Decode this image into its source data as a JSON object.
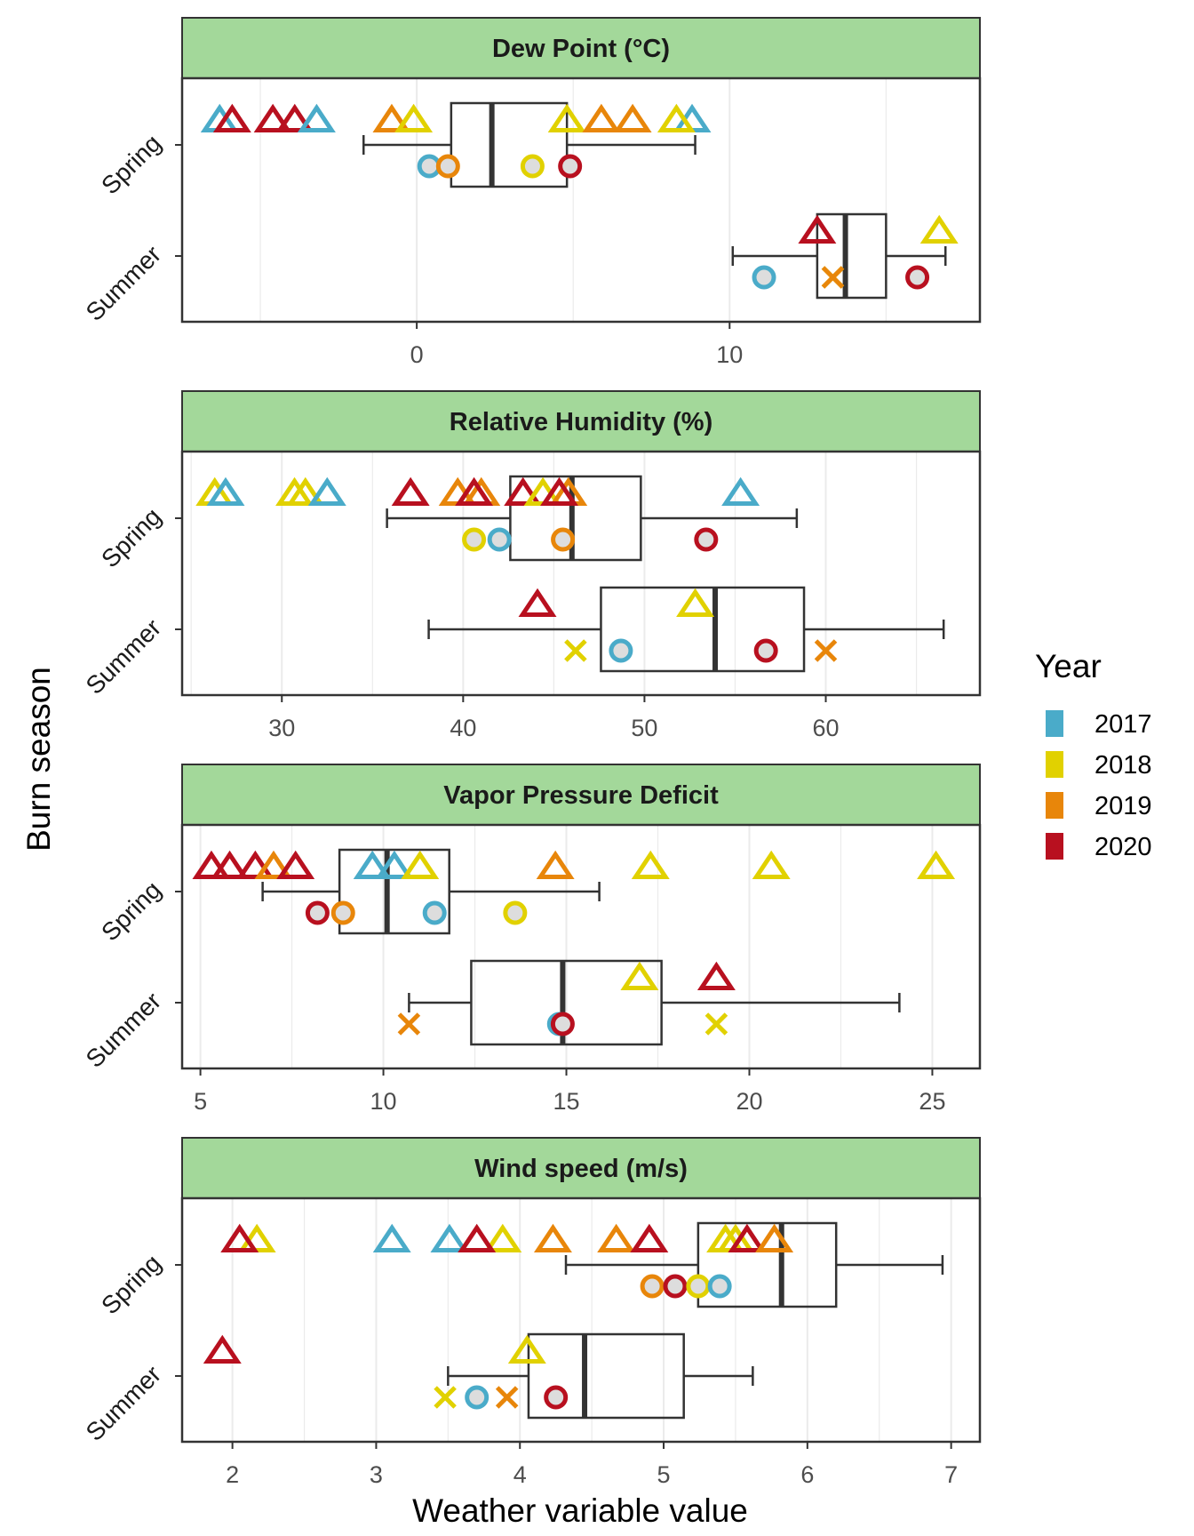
{
  "chart_data": {
    "type": "boxplot",
    "ylabel": "Burn season",
    "xlabel": "Weather variable value",
    "categories": [
      "Spring",
      "Summer"
    ],
    "legend": {
      "title": "Year",
      "placement": "right",
      "entries": [
        {
          "label": "2017",
          "color": "#4AABC9"
        },
        {
          "label": "2018",
          "color": "#E1D100"
        },
        {
          "label": "2019",
          "color": "#E8860A"
        },
        {
          "label": "2020",
          "color": "#B8101F"
        }
      ]
    },
    "panels": [
      {
        "title": "Dew Point (°C)",
        "xlim": [
          -7.5,
          18
        ],
        "xticks": [
          0,
          10
        ],
        "grid": true,
        "boxes": {
          "Spring": {
            "whisker_low": -1.7,
            "q1": 1.1,
            "median": 2.4,
            "q3": 4.8,
            "whisker_high": 8.9
          },
          "Summer": {
            "whisker_low": 10.1,
            "q1": 12.8,
            "median": 13.7,
            "q3": 15.0,
            "whisker_high": 16.9
          }
        },
        "points": [
          {
            "season": "Spring",
            "shape": "triangle",
            "year": "2017",
            "x": -6.3
          },
          {
            "season": "Spring",
            "shape": "triangle",
            "year": "2020",
            "x": -5.9
          },
          {
            "season": "Spring",
            "shape": "triangle",
            "year": "2020",
            "x": -4.6
          },
          {
            "season": "Spring",
            "shape": "triangle",
            "year": "2020",
            "x": -3.9
          },
          {
            "season": "Spring",
            "shape": "triangle",
            "year": "2017",
            "x": -3.2
          },
          {
            "season": "Spring",
            "shape": "triangle",
            "year": "2019",
            "x": -0.8
          },
          {
            "season": "Spring",
            "shape": "triangle",
            "year": "2018",
            "x": -0.1
          },
          {
            "season": "Spring",
            "shape": "triangle",
            "year": "2018",
            "x": 4.8
          },
          {
            "season": "Spring",
            "shape": "triangle",
            "year": "2019",
            "x": 5.9
          },
          {
            "season": "Spring",
            "shape": "triangle",
            "year": "2019",
            "x": 6.9
          },
          {
            "season": "Spring",
            "shape": "triangle",
            "year": "2017",
            "x": 8.8
          },
          {
            "season": "Spring",
            "shape": "triangle",
            "year": "2018",
            "x": 8.3
          },
          {
            "season": "Spring",
            "shape": "circle",
            "year": "2017",
            "x": 0.4
          },
          {
            "season": "Spring",
            "shape": "circle",
            "year": "2019",
            "x": 1.0
          },
          {
            "season": "Spring",
            "shape": "circle",
            "year": "2018",
            "x": 3.7
          },
          {
            "season": "Spring",
            "shape": "circle",
            "year": "2020",
            "x": 4.9
          },
          {
            "season": "Summer",
            "shape": "triangle",
            "year": "2020",
            "x": 12.8
          },
          {
            "season": "Summer",
            "shape": "triangle",
            "year": "2018",
            "x": 16.7
          },
          {
            "season": "Summer",
            "shape": "circle",
            "year": "2017",
            "x": 11.1
          },
          {
            "season": "Summer",
            "shape": "cross",
            "year": "2018",
            "x": 13.3
          },
          {
            "season": "Summer",
            "shape": "cross",
            "year": "2019",
            "x": 13.3
          },
          {
            "season": "Summer",
            "shape": "circle",
            "year": "2020",
            "x": 16.0
          }
        ]
      },
      {
        "title": "Relative Humidity (%)",
        "xlim": [
          24.5,
          68.5
        ],
        "xticks": [
          30,
          40,
          50,
          60
        ],
        "grid": true,
        "boxes": {
          "Spring": {
            "whisker_low": 35.8,
            "q1": 42.6,
            "median": 46.0,
            "q3": 49.8,
            "whisker_high": 58.4
          },
          "Summer": {
            "whisker_low": 38.1,
            "q1": 47.6,
            "median": 53.9,
            "q3": 58.8,
            "whisker_high": 66.5
          }
        },
        "points": [
          {
            "season": "Spring",
            "shape": "triangle",
            "year": "2018",
            "x": 26.3
          },
          {
            "season": "Spring",
            "shape": "triangle",
            "year": "2017",
            "x": 26.9
          },
          {
            "season": "Spring",
            "shape": "triangle",
            "year": "2018",
            "x": 30.7
          },
          {
            "season": "Spring",
            "shape": "triangle",
            "year": "2018",
            "x": 31.3
          },
          {
            "season": "Spring",
            "shape": "triangle",
            "year": "2017",
            "x": 32.5
          },
          {
            "season": "Spring",
            "shape": "triangle",
            "year": "2020",
            "x": 37.1
          },
          {
            "season": "Spring",
            "shape": "triangle",
            "year": "2019",
            "x": 39.7
          },
          {
            "season": "Spring",
            "shape": "triangle",
            "year": "2019",
            "x": 41.0
          },
          {
            "season": "Spring",
            "shape": "triangle",
            "year": "2020",
            "x": 40.6
          },
          {
            "season": "Spring",
            "shape": "triangle",
            "year": "2020",
            "x": 43.3
          },
          {
            "season": "Spring",
            "shape": "triangle",
            "year": "2018",
            "x": 44.4
          },
          {
            "season": "Spring",
            "shape": "triangle",
            "year": "2019",
            "x": 45.8
          },
          {
            "season": "Spring",
            "shape": "triangle",
            "year": "2020",
            "x": 45.3
          },
          {
            "season": "Spring",
            "shape": "triangle",
            "year": "2017",
            "x": 55.3
          },
          {
            "season": "Spring",
            "shape": "circle",
            "year": "2018",
            "x": 40.6
          },
          {
            "season": "Spring",
            "shape": "circle",
            "year": "2017",
            "x": 42.0
          },
          {
            "season": "Spring",
            "shape": "circle",
            "year": "2019",
            "x": 45.5
          },
          {
            "season": "Spring",
            "shape": "circle",
            "year": "2020",
            "x": 53.4
          },
          {
            "season": "Summer",
            "shape": "triangle",
            "year": "2020",
            "x": 44.1
          },
          {
            "season": "Summer",
            "shape": "triangle",
            "year": "2018",
            "x": 52.8
          },
          {
            "season": "Summer",
            "shape": "cross",
            "year": "2018",
            "x": 46.2
          },
          {
            "season": "Summer",
            "shape": "circle",
            "year": "2017",
            "x": 48.7
          },
          {
            "season": "Summer",
            "shape": "circle",
            "year": "2020",
            "x": 56.7
          },
          {
            "season": "Summer",
            "shape": "cross",
            "year": "2019",
            "x": 60.0
          }
        ]
      },
      {
        "title": "Vapor Pressure Deficit",
        "xlim": [
          4.5,
          26.3
        ],
        "xticks": [
          5,
          10,
          15,
          20,
          25
        ],
        "grid": true,
        "boxes": {
          "Spring": {
            "whisker_low": 6.7,
            "q1": 8.8,
            "median": 10.1,
            "q3": 11.8,
            "whisker_high": 15.9
          },
          "Summer": {
            "whisker_low": 10.7,
            "q1": 12.4,
            "median": 14.9,
            "q3": 17.6,
            "whisker_high": 24.1
          }
        },
        "points": [
          {
            "season": "Spring",
            "shape": "triangle",
            "year": "2020",
            "x": 5.3
          },
          {
            "season": "Spring",
            "shape": "triangle",
            "year": "2020",
            "x": 5.8
          },
          {
            "season": "Spring",
            "shape": "triangle",
            "year": "2020",
            "x": 6.5
          },
          {
            "season": "Spring",
            "shape": "triangle",
            "year": "2019",
            "x": 7.0
          },
          {
            "season": "Spring",
            "shape": "triangle",
            "year": "2020",
            "x": 7.6
          },
          {
            "season": "Spring",
            "shape": "triangle",
            "year": "2017",
            "x": 9.7
          },
          {
            "season": "Spring",
            "shape": "triangle",
            "year": "2017",
            "x": 10.3
          },
          {
            "season": "Spring",
            "shape": "triangle",
            "year": "2018",
            "x": 11.0
          },
          {
            "season": "Spring",
            "shape": "triangle",
            "year": "2019",
            "x": 14.7
          },
          {
            "season": "Spring",
            "shape": "triangle",
            "year": "2018",
            "x": 17.3
          },
          {
            "season": "Spring",
            "shape": "triangle",
            "year": "2018",
            "x": 20.6
          },
          {
            "season": "Spring",
            "shape": "triangle",
            "year": "2018",
            "x": 25.1
          },
          {
            "season": "Spring",
            "shape": "circle",
            "year": "2020",
            "x": 8.2
          },
          {
            "season": "Spring",
            "shape": "circle",
            "year": "2019",
            "x": 8.9
          },
          {
            "season": "Spring",
            "shape": "circle",
            "year": "2017",
            "x": 11.4
          },
          {
            "season": "Spring",
            "shape": "circle",
            "year": "2018",
            "x": 13.6
          },
          {
            "season": "Summer",
            "shape": "triangle",
            "year": "2018",
            "x": 17.0
          },
          {
            "season": "Summer",
            "shape": "triangle",
            "year": "2020",
            "x": 19.1
          },
          {
            "season": "Summer",
            "shape": "cross",
            "year": "2019",
            "x": 10.7
          },
          {
            "season": "Summer",
            "shape": "circle",
            "year": "2017",
            "x": 14.8
          },
          {
            "season": "Summer",
            "shape": "circle",
            "year": "2020",
            "x": 14.9
          },
          {
            "season": "Summer",
            "shape": "cross",
            "year": "2018",
            "x": 19.1
          }
        ]
      },
      {
        "title": "Wind speed (m/s)",
        "xlim": [
          1.65,
          7.2
        ],
        "xticks": [
          2,
          3,
          4,
          5,
          6,
          7
        ],
        "grid": true,
        "boxes": {
          "Spring": {
            "whisker_low": 4.32,
            "q1": 5.24,
            "median": 5.82,
            "q3": 6.2,
            "whisker_high": 6.94
          },
          "Summer": {
            "whisker_low": 3.5,
            "q1": 4.06,
            "median": 4.45,
            "q3": 5.14,
            "whisker_high": 5.62
          }
        },
        "points": [
          {
            "season": "Spring",
            "shape": "triangle",
            "year": "2018",
            "x": 2.17
          },
          {
            "season": "Spring",
            "shape": "triangle",
            "year": "2020",
            "x": 2.05
          },
          {
            "season": "Spring",
            "shape": "triangle",
            "year": "2017",
            "x": 3.11
          },
          {
            "season": "Spring",
            "shape": "triangle",
            "year": "2017",
            "x": 3.51
          },
          {
            "season": "Spring",
            "shape": "triangle",
            "year": "2018",
            "x": 3.88
          },
          {
            "season": "Spring",
            "shape": "triangle",
            "year": "2020",
            "x": 3.7
          },
          {
            "season": "Spring",
            "shape": "triangle",
            "year": "2019",
            "x": 4.23
          },
          {
            "season": "Spring",
            "shape": "triangle",
            "year": "2019",
            "x": 4.67
          },
          {
            "season": "Spring",
            "shape": "triangle",
            "year": "2020",
            "x": 4.9
          },
          {
            "season": "Spring",
            "shape": "triangle",
            "year": "2018",
            "x": 5.43
          },
          {
            "season": "Spring",
            "shape": "triangle",
            "year": "2018",
            "x": 5.5
          },
          {
            "season": "Spring",
            "shape": "triangle",
            "year": "2020",
            "x": 5.58
          },
          {
            "season": "Spring",
            "shape": "triangle",
            "year": "2019",
            "x": 5.77
          },
          {
            "season": "Spring",
            "shape": "circle",
            "year": "2019",
            "x": 4.92
          },
          {
            "season": "Spring",
            "shape": "circle",
            "year": "2020",
            "x": 5.08
          },
          {
            "season": "Spring",
            "shape": "circle",
            "year": "2018",
            "x": 5.24
          },
          {
            "season": "Spring",
            "shape": "circle",
            "year": "2017",
            "x": 5.39
          },
          {
            "season": "Summer",
            "shape": "triangle",
            "year": "2020",
            "x": 1.93
          },
          {
            "season": "Summer",
            "shape": "triangle",
            "year": "2018",
            "x": 4.05
          },
          {
            "season": "Summer",
            "shape": "cross",
            "year": "2018",
            "x": 3.48
          },
          {
            "season": "Summer",
            "shape": "circle",
            "year": "2017",
            "x": 3.7
          },
          {
            "season": "Summer",
            "shape": "cross",
            "year": "2019",
            "x": 3.91
          },
          {
            "season": "Summer",
            "shape": "circle",
            "year": "2020",
            "x": 4.25
          }
        ]
      }
    ]
  }
}
